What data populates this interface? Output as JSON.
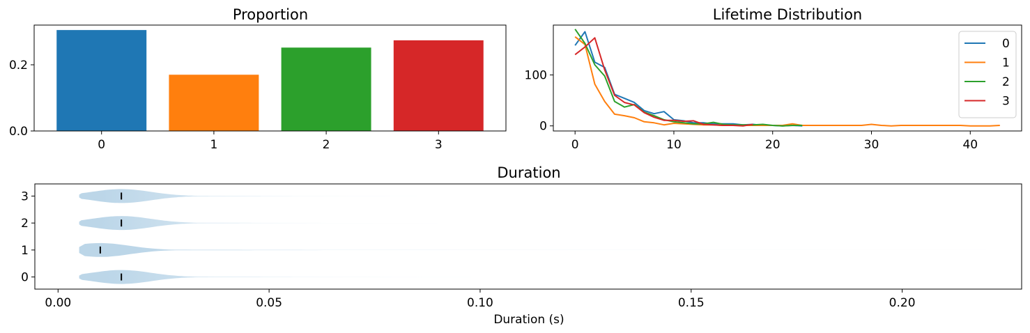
{
  "colors": [
    "#1f77b4",
    "#ff7f0e",
    "#2ca02c",
    "#d62728"
  ],
  "chart_data": [
    {
      "type": "bar",
      "title": "Proportion",
      "xlabel": "",
      "ylabel": "",
      "categories": [
        "0",
        "1",
        "2",
        "3"
      ],
      "values": [
        0.305,
        0.17,
        0.252,
        0.274
      ],
      "ylim": [
        0,
        0.32
      ],
      "yticks": [
        0.0,
        0.2
      ],
      "ytick_labels": [
        "0.0",
        "0.2"
      ],
      "grid": false
    },
    {
      "type": "line",
      "title": "Lifetime Distribution",
      "xlabel": "",
      "ylabel": "",
      "xlim": [
        -2.2,
        45.2
      ],
      "ylim": [
        -10,
        198
      ],
      "xticks": [
        0,
        10,
        20,
        30,
        40
      ],
      "xtick_labels": [
        "0",
        "10",
        "20",
        "30",
        "40"
      ],
      "yticks": [
        0,
        100
      ],
      "ytick_labels": [
        "0",
        "100"
      ],
      "legend": {
        "location": "top-right",
        "entries": [
          "0",
          "1",
          "2",
          "3"
        ]
      },
      "grid": false,
      "series": [
        {
          "name": "0",
          "x": [
            0,
            1,
            2,
            3,
            4,
            5,
            6,
            7,
            8,
            9,
            10,
            11,
            12,
            13,
            14,
            15,
            16,
            17,
            18,
            19,
            20,
            21,
            22,
            23
          ],
          "values": [
            158,
            185,
            125,
            115,
            62,
            54,
            46,
            30,
            24,
            28,
            12,
            10,
            6,
            6,
            4,
            4,
            4,
            2,
            3,
            1,
            1,
            0,
            1,
            0
          ]
        },
        {
          "name": "1",
          "x": [
            0,
            1,
            2,
            3,
            4,
            5,
            6,
            7,
            8,
            9,
            10,
            11,
            12,
            13,
            14,
            15,
            16,
            17,
            18,
            19,
            20,
            21,
            22,
            23,
            24,
            25,
            26,
            27,
            28,
            29,
            30,
            31,
            32,
            33,
            34,
            35,
            36,
            37,
            38,
            39,
            40,
            41,
            42,
            43
          ],
          "values": [
            175,
            160,
            82,
            48,
            23,
            20,
            16,
            8,
            6,
            2,
            5,
            4,
            3,
            2,
            2,
            1,
            1,
            1,
            1,
            1,
            1,
            1,
            4,
            1,
            1,
            1,
            1,
            1,
            1,
            1,
            3,
            1,
            0,
            1,
            1,
            1,
            1,
            1,
            1,
            1,
            0,
            0,
            0,
            1
          ]
        },
        {
          "name": "2",
          "x": [
            0,
            1,
            2,
            3,
            4,
            5,
            6,
            7,
            8,
            9,
            10,
            11,
            12,
            13,
            14,
            15,
            16,
            17,
            18,
            19,
            20,
            21,
            22,
            23
          ],
          "values": [
            190,
            162,
            120,
            98,
            48,
            37,
            42,
            27,
            20,
            12,
            8,
            6,
            4,
            4,
            7,
            3,
            2,
            2,
            2,
            3,
            1,
            0,
            1,
            1
          ]
        },
        {
          "name": "3",
          "x": [
            0,
            1,
            2,
            3,
            4,
            5,
            6,
            7,
            8,
            9,
            10,
            11,
            12,
            13,
            14,
            15,
            16,
            17,
            18
          ],
          "values": [
            140,
            155,
            173,
            110,
            60,
            46,
            41,
            26,
            17,
            11,
            11,
            9,
            10,
            3,
            2,
            1,
            1,
            0,
            3
          ]
        }
      ]
    },
    {
      "type": "violin",
      "title": "Duration",
      "xlabel": "Duration (s)",
      "ylabel": "",
      "xlim": [
        -0.0055,
        0.2283
      ],
      "ylim": [
        -0.45,
        3.45
      ],
      "xticks": [
        0.0,
        0.05,
        0.1,
        0.15,
        0.2
      ],
      "xtick_labels": [
        "0.00",
        "0.05",
        "0.10",
        "0.15",
        "0.20"
      ],
      "yticks": [
        0,
        1,
        2,
        3
      ],
      "ytick_labels": [
        "0",
        "1",
        "2",
        "3"
      ],
      "grid": false,
      "violins": [
        {
          "category": "0",
          "min": 0.005,
          "max": 0.11,
          "median": 0.015
        },
        {
          "category": "1",
          "min": 0.005,
          "max": 0.22,
          "median": 0.01
        },
        {
          "category": "2",
          "min": 0.005,
          "max": 0.09,
          "median": 0.015
        },
        {
          "category": "3",
          "min": 0.005,
          "max": 0.095,
          "median": 0.015
        }
      ],
      "violin_color": "#1f77b4",
      "median_color": "#000000"
    }
  ]
}
